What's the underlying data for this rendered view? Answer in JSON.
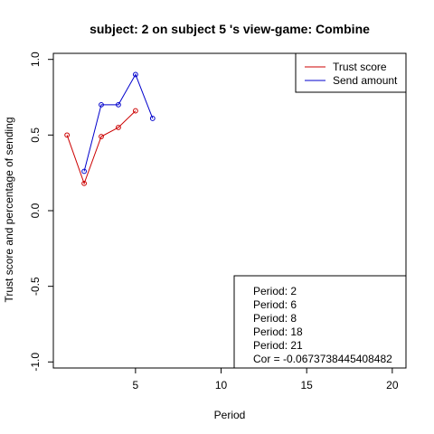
{
  "chart_data": {
    "type": "line",
    "title": "subject:  2  on subject  5 's view-game:  Combine",
    "xlabel": "Period",
    "ylabel": "Trust score and percentage of sending",
    "xlim": [
      0.2,
      20.8
    ],
    "ylim": [
      -1.04,
      1.04
    ],
    "x_ticks": [
      5,
      10,
      15,
      20
    ],
    "y_ticks": [
      -1.0,
      -0.5,
      0.0,
      0.5,
      1.0
    ],
    "y_tick_labels": [
      "-1.0",
      "-0.5",
      "0.0",
      "0.5",
      "1.0"
    ],
    "legend_position": "top-right",
    "series": [
      {
        "name": "Trust score",
        "color": "#cc0000",
        "x": [
          1,
          2,
          3,
          4,
          5
        ],
        "values": [
          0.5,
          0.18,
          0.49,
          0.55,
          0.66
        ]
      },
      {
        "name": "Send amount",
        "color": "#0000cc",
        "x": [
          2,
          3,
          4,
          5,
          6
        ],
        "values": [
          0.26,
          0.7,
          0.7,
          0.9,
          0.61
        ]
      }
    ],
    "annotation": {
      "position": "bottom-right",
      "lines": [
        "Period:  2",
        "Period:  6",
        "Period:  8",
        "Period:  18",
        "Period:  21",
        "Cor =  -0.0673738445408482"
      ]
    }
  }
}
